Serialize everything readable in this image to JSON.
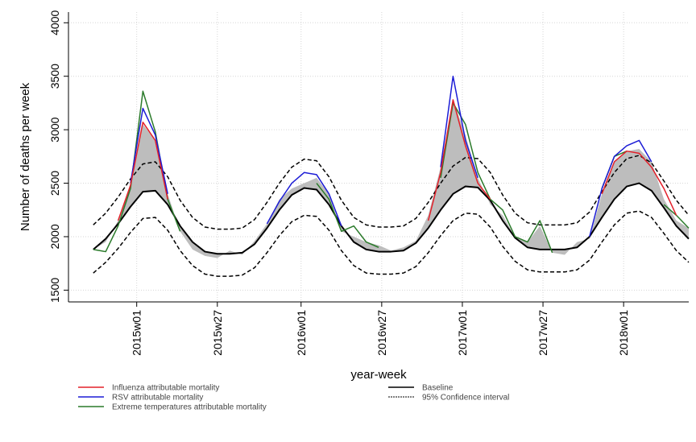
{
  "chart_data": {
    "type": "line",
    "xlabel": "year-week",
    "ylabel": "Number of deaths per week",
    "x": [
      -14,
      -10,
      -6,
      -2,
      2,
      6,
      10,
      14,
      18,
      22,
      26,
      30,
      34,
      38,
      42,
      46,
      50,
      54,
      58,
      62,
      66,
      70,
      74,
      78,
      82,
      86,
      90,
      94,
      98,
      102,
      106,
      110,
      114,
      118,
      122,
      126,
      130,
      134,
      138,
      142,
      146,
      150,
      154,
      158,
      162,
      166,
      170,
      174,
      178
    ],
    "xlim": [
      -22,
      178
    ],
    "xticks": [
      {
        "value": 0,
        "label": "2015w01"
      },
      {
        "value": 26,
        "label": "2015w27"
      },
      {
        "value": 53,
        "label": "2016w01"
      },
      {
        "value": 79,
        "label": "2016w27"
      },
      {
        "value": 105,
        "label": "2017w01"
      },
      {
        "value": 131,
        "label": "2017w27"
      },
      {
        "value": 157,
        "label": "2018w01"
      }
    ],
    "ylim": [
      1390,
      4100
    ],
    "yticks": [
      1500,
      2000,
      2500,
      3000,
      3500,
      4000
    ],
    "grid": true,
    "series": [
      {
        "name": "Influenza attributable mortality",
        "color": "#e3202a",
        "values": [
          null,
          null,
          2150,
          2480,
          3070,
          2900,
          2350,
          null,
          null,
          null,
          null,
          null,
          null,
          null,
          null,
          null,
          null,
          null,
          null,
          null,
          null,
          null,
          null,
          null,
          null,
          null,
          null,
          2150,
          2600,
          3280,
          2850,
          2500,
          2350,
          null,
          null,
          null,
          null,
          null,
          null,
          null,
          null,
          2400,
          2700,
          2800,
          2780,
          2650,
          2450,
          2200,
          null
        ]
      },
      {
        "name": "RSV attributable mortality",
        "color": "#1c1cd6",
        "values": [
          null,
          null,
          null,
          2500,
          3200,
          2950,
          2400,
          null,
          null,
          null,
          null,
          null,
          null,
          null,
          2120,
          2330,
          2500,
          2600,
          2580,
          2400,
          2100,
          null,
          null,
          null,
          null,
          null,
          null,
          null,
          2650,
          3500,
          2900,
          2550,
          null,
          null,
          null,
          null,
          null,
          null,
          null,
          null,
          2000,
          2450,
          2750,
          2850,
          2900,
          2700,
          null,
          null,
          null
        ]
      },
      {
        "name": "Extreme temperatures attributable mortality",
        "color": "#2a7a2a",
        "values": [
          1880,
          1860,
          2100,
          2450,
          3360,
          2980,
          2350,
          2050,
          null,
          null,
          null,
          null,
          null,
          null,
          null,
          null,
          null,
          null,
          2500,
          2350,
          2050,
          2100,
          1950,
          1900,
          null,
          null,
          null,
          null,
          2550,
          3250,
          3050,
          2600,
          2350,
          2250,
          2000,
          1950,
          2150,
          1850,
          null,
          null,
          null,
          2450,
          2750,
          2800,
          null,
          null,
          2300,
          2200,
          2080
        ]
      },
      {
        "name": "Baseline",
        "color": "#000000",
        "width": 2,
        "values": [
          1880,
          1980,
          2120,
          2280,
          2420,
          2430,
          2300,
          2100,
          1950,
          1860,
          1840,
          1840,
          1850,
          1930,
          2080,
          2250,
          2390,
          2455,
          2440,
          2300,
          2100,
          1950,
          1880,
          1860,
          1860,
          1870,
          1940,
          2080,
          2250,
          2400,
          2470,
          2460,
          2340,
          2150,
          1990,
          1900,
          1880,
          1880,
          1880,
          1900,
          2000,
          2180,
          2350,
          2470,
          2500,
          2430,
          2270,
          2100,
          1980
        ]
      },
      {
        "name": "95% Confidence interval",
        "color": "#000000",
        "dash": true,
        "values": [
          2110,
          2220,
          2370,
          2540,
          2680,
          2700,
          2560,
          2340,
          2180,
          2090,
          2070,
          2070,
          2080,
          2160,
          2320,
          2500,
          2650,
          2725,
          2710,
          2560,
          2340,
          2180,
          2110,
          2090,
          2090,
          2100,
          2170,
          2320,
          2500,
          2660,
          2740,
          2730,
          2600,
          2390,
          2220,
          2130,
          2110,
          2110,
          2110,
          2130,
          2230,
          2420,
          2600,
          2730,
          2760,
          2690,
          2520,
          2340,
          2200
        ]
      },
      {
        "color": "#000000",
        "dash": true,
        "values": [
          1660,
          1760,
          1890,
          2040,
          2170,
          2180,
          2060,
          1870,
          1730,
          1650,
          1630,
          1630,
          1640,
          1710,
          1850,
          2010,
          2140,
          2200,
          2190,
          2060,
          1870,
          1730,
          1660,
          1650,
          1650,
          1660,
          1720,
          1850,
          2010,
          2150,
          2220,
          2210,
          2090,
          1910,
          1770,
          1690,
          1670,
          1670,
          1670,
          1690,
          1780,
          1950,
          2110,
          2220,
          2240,
          2180,
          2030,
          1870,
          1760
        ]
      },
      {
        "color": "#bdbdbd",
        "fill_between": "Baseline",
        "values": [
          1880,
          1950,
          2150,
          2500,
          3050,
          2900,
          2400,
          2050,
          1880,
          1820,
          1800,
          1870,
          1830,
          1960,
          2120,
          2350,
          2450,
          2500,
          2550,
          2400,
          2050,
          2000,
          1950,
          1920,
          1870,
          1900,
          1960,
          2200,
          2650,
          3280,
          2950,
          2550,
          2300,
          2200,
          2000,
          1950,
          2100,
          1850,
          1830,
          1950,
          1980,
          2400,
          2700,
          2800,
          2820,
          2700,
          2350,
          2150,
          2080
        ]
      }
    ]
  }
}
